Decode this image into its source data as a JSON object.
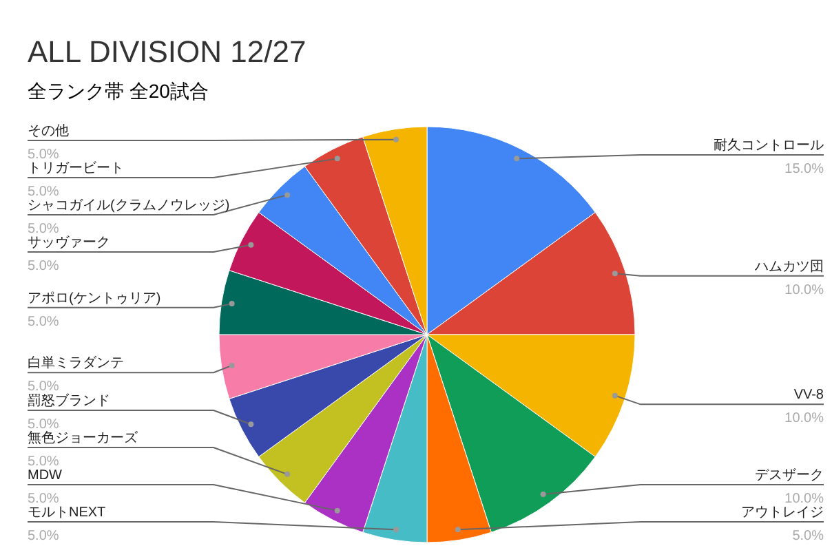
{
  "chart_data": {
    "type": "pie",
    "title": "ALL DIVISION 12/27",
    "subtitle": "全ランク帯 全20試合",
    "categories": [
      "耐久コントロール",
      "ハムカツ団",
      "VV-8",
      "デスザーク",
      "アウトレイジ",
      "モルトNEXT",
      "MDW",
      "無色ジョーカーズ",
      "罰怒ブランド",
      "白単ミラダンテ",
      "アポロ(ケントゥリア)",
      "サッヴァーク",
      "シャコガイル(クラムノウレッジ)",
      "トリガービート",
      "その他"
    ],
    "values": [
      15,
      10,
      10,
      10,
      5,
      5,
      5,
      5,
      5,
      5,
      5,
      5,
      5,
      5,
      5
    ],
    "colors": [
      "#4285f4",
      "#db4437",
      "#f4b400",
      "#0f9d58",
      "#ff6d00",
      "#46bdc6",
      "#ab30c4",
      "#c2c121",
      "#3949ab",
      "#f77ca8",
      "#00695c",
      "#c2185b",
      "#4285f4",
      "#db4437",
      "#f4b400"
    ],
    "value_labels": [
      "15.0%",
      "10.0%",
      "10.0%",
      "10.0%",
      "5.0%",
      "5.0%",
      "5.0%",
      "5.0%",
      "5.0%",
      "5.0%",
      "5.0%",
      "5.0%",
      "5.0%",
      "5.0%",
      "5.0%"
    ]
  }
}
